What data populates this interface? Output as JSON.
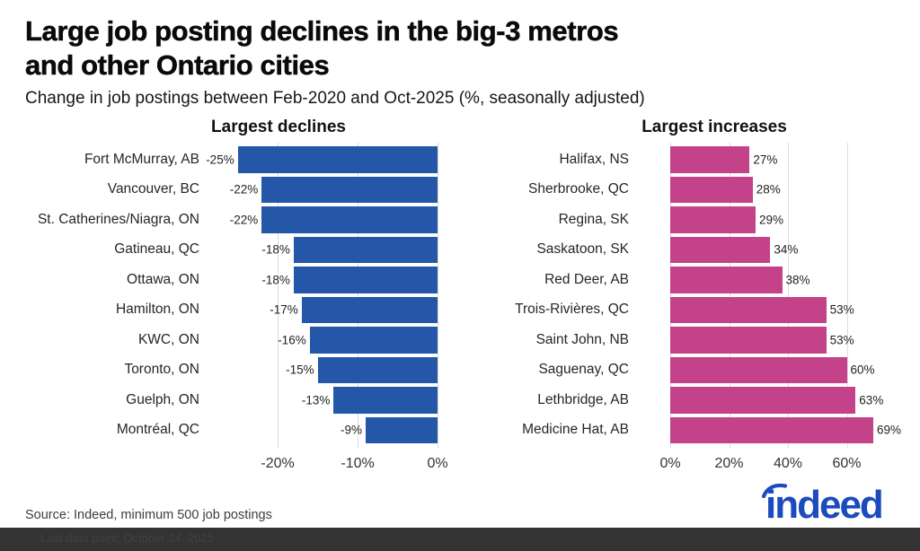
{
  "header": {
    "title_line1": "Large job posting declines in the big-3 metros",
    "title_line2": "and other Ontario cities",
    "subtitle": "Change in job postings between Feb-2020 and Oct-2025 (%, seasonally adjusted)"
  },
  "footer": {
    "source": "Source: Indeed, minimum 500 job postings",
    "fineprint": "Last data point: October 24, 2025",
    "logo_text": "indeed"
  },
  "colors": {
    "decline_bar": "#2457a7",
    "increase_bar": "#c4428a",
    "gridline": "#dcdcdc",
    "footer_bar": "#333333",
    "logo_blue": "#1c4bbd"
  },
  "chart_data": {
    "type": "bar",
    "orientation": "horizontal",
    "unit": "%",
    "figure_title": "Large job posting declines in the big-3 metros and other Ontario cities",
    "figure_subtitle": "Change in job postings between Feb-2020 and Oct-2025 (%, seasonally adjusted)",
    "grid": true,
    "legend": false,
    "charts": [
      {
        "title": "Largest declines",
        "bar_color": "#2457a7",
        "categories": [
          "Fort McMurray, AB",
          "Vancouver, BC",
          "St. Catherines/Niagra, ON",
          "Gatineau, QC",
          "Ottawa, ON",
          "Hamilton, ON",
          "KWC, ON",
          "Toronto, ON",
          "Guelph, ON",
          "Montréal, QC"
        ],
        "values": [
          -25,
          -22,
          -22,
          -18,
          -18,
          -17,
          -16,
          -15,
          -13,
          -9
        ],
        "value_labels": [
          "-25%",
          "-22%",
          "-22%",
          "-18%",
          "-18%",
          "-17%",
          "-16%",
          "-15%",
          "-13%",
          "-9%"
        ],
        "xlim": [
          -25.3,
          0
        ],
        "ticks": [
          {
            "value": -20,
            "label": "-20%"
          },
          {
            "value": -10,
            "label": "-10%"
          },
          {
            "value": 0,
            "label": "0%"
          }
        ]
      },
      {
        "title": "Largest increases",
        "bar_color": "#c4428a",
        "categories": [
          "Halifax, NS",
          "Sherbrooke, QC",
          "Regina, SK",
          "Saskatoon, SK",
          "Red Deer, AB",
          "Trois-Rivières, QC",
          "Saint John, NB",
          "Saguenay, QC",
          "Lethbridge, AB",
          "Medicine Hat, AB"
        ],
        "values": [
          27,
          28,
          29,
          34,
          38,
          53,
          53,
          60,
          63,
          69
        ],
        "value_labels": [
          "27%",
          "28%",
          "29%",
          "34%",
          "38%",
          "53%",
          "53%",
          "60%",
          "63%",
          "69%"
        ],
        "xlim": [
          0,
          74.5
        ],
        "ticks": [
          {
            "value": 0,
            "label": "0%"
          },
          {
            "value": 20,
            "label": "20%"
          },
          {
            "value": 40,
            "label": "40%"
          },
          {
            "value": 60,
            "label": "60%"
          }
        ]
      }
    ]
  }
}
